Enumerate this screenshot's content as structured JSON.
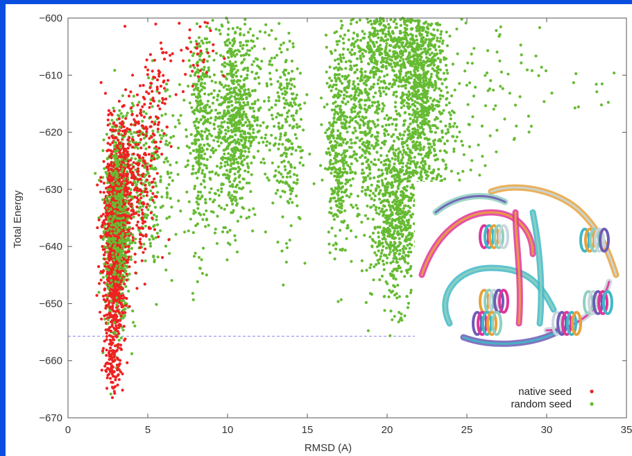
{
  "chart_data": {
    "type": "scatter",
    "title": "",
    "xlabel": "RMSD (A)",
    "ylabel": "Total Energy",
    "xlim": [
      0,
      35
    ],
    "ylim": [
      -670,
      -600
    ],
    "x_ticks": [
      0,
      5,
      10,
      15,
      20,
      25,
      30,
      35
    ],
    "y_ticks": [
      -600,
      -610,
      -620,
      -630,
      -640,
      -650,
      -660,
      -670
    ],
    "x_tick_labels": [
      "0",
      "5",
      "10",
      "15",
      "20",
      "25",
      "30",
      "35"
    ],
    "y_tick_labels": [
      "−600",
      "−610",
      "−620",
      "−630",
      "−640",
      "−650",
      "−660",
      "−670"
    ],
    "grid": false,
    "legend_position": "bottom-right",
    "reference_line": {
      "y": -655.7,
      "x_range": [
        0,
        22
      ],
      "color": "#8888ee",
      "style": "dashed"
    },
    "series": [
      {
        "name": "native seed",
        "color": "#ee2222",
        "clusters": [
          {
            "x": 2.9,
            "y": -640,
            "sx": 0.35,
            "sy": 9.0,
            "n": 900
          },
          {
            "x": 3.3,
            "y": -630,
            "sx": 0.35,
            "sy": 6.0,
            "n": 300
          },
          {
            "x": 2.8,
            "y": -660,
            "sx": 0.25,
            "sy": 2.5,
            "n": 80
          },
          {
            "x": 4.5,
            "y": -628,
            "sx": 0.6,
            "sy": 8.0,
            "n": 220
          },
          {
            "x": 5.6,
            "y": -615,
            "sx": 0.4,
            "sy": 7.0,
            "n": 70
          },
          {
            "x": 7.8,
            "y": -606,
            "sx": 0.7,
            "sy": 4.0,
            "n": 40
          }
        ]
      },
      {
        "name": "random seed",
        "color": "#66bb33",
        "clusters": [
          {
            "x": 3.1,
            "y": -637,
            "sx": 0.4,
            "sy": 8.5,
            "n": 700
          },
          {
            "x": 4.6,
            "y": -628,
            "sx": 0.7,
            "sy": 7.5,
            "n": 220
          },
          {
            "x": 6.0,
            "y": -625,
            "sx": 1.0,
            "sy": 8.0,
            "n": 90
          },
          {
            "x": 8.3,
            "y": -620,
            "sx": 0.35,
            "sy": 10.0,
            "n": 300
          },
          {
            "x": 10.4,
            "y": -618,
            "sx": 0.7,
            "sy": 9.0,
            "n": 650
          },
          {
            "x": 11.6,
            "y": -610,
            "sx": 1.3,
            "sy": 8.0,
            "n": 120
          },
          {
            "x": 13.6,
            "y": -620,
            "sx": 0.55,
            "sy": 9.0,
            "n": 220
          },
          {
            "x": 16.9,
            "y": -622,
            "sx": 0.35,
            "sy": 9.0,
            "n": 300
          },
          {
            "x": 18.4,
            "y": -617,
            "sx": 0.9,
            "sy": 10.0,
            "n": 500
          },
          {
            "x": 20.5,
            "y": -636,
            "sx": 0.75,
            "sy": 7.0,
            "n": 550
          },
          {
            "x": 20.5,
            "y": -605,
            "sx": 1.2,
            "sy": 4.0,
            "n": 450
          },
          {
            "x": 22.2,
            "y": -612,
            "sx": 0.75,
            "sy": 8.0,
            "n": 650
          },
          {
            "x": 21.5,
            "y": -628,
            "sx": 1.2,
            "sy": 6.0,
            "n": 250
          },
          {
            "x": 24.5,
            "y": -616,
            "sx": 1.6,
            "sy": 9.0,
            "n": 120
          },
          {
            "x": 28.5,
            "y": -610,
            "sx": 2.5,
            "sy": 5.0,
            "n": 35
          },
          {
            "x": 33.5,
            "y": -613,
            "sx": 0.5,
            "sy": 2.0,
            "n": 5
          }
        ]
      }
    ]
  }
}
